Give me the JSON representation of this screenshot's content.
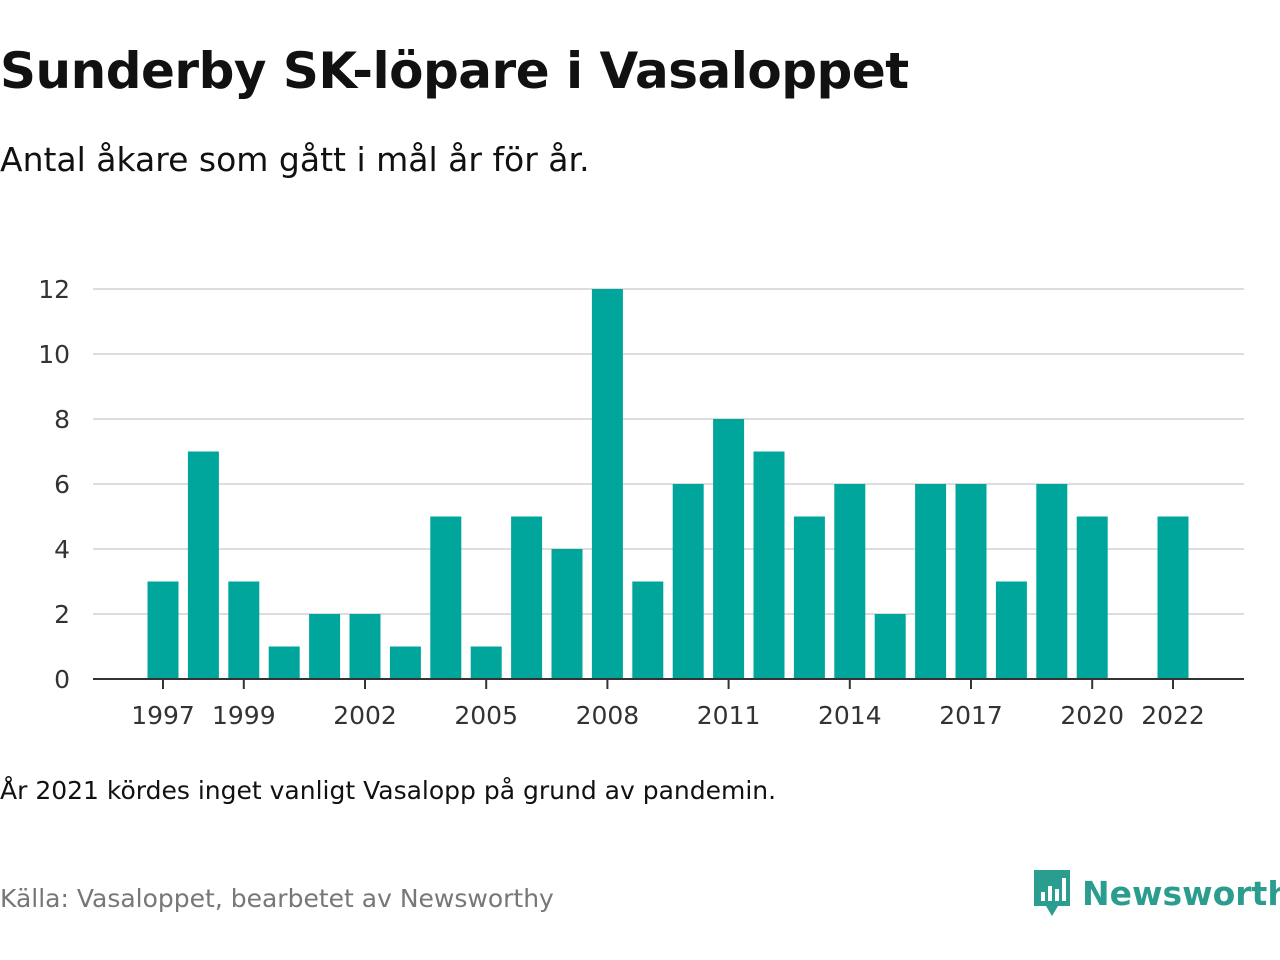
{
  "title": "Sunderby SK-löpare i Vasaloppet",
  "subtitle": "Antal åkare som gått i mål år för år.",
  "note": "År 2021 kördes inget vanligt Vasalopp på grund av pandemin.",
  "source": "Källa: Vasaloppet, bearbetet av Newsworthy",
  "brand": {
    "name": "Newsworthy",
    "icon": "newsworthy-logo-icon",
    "color": "#2a9d8f"
  },
  "colors": {
    "bar": "#00a59b",
    "grid": "#dddddd",
    "axis": "#333333"
  },
  "chart_data": {
    "type": "bar",
    "categories": [
      "1997",
      "1998",
      "1999",
      "2000",
      "2001",
      "2002",
      "2003",
      "2004",
      "2005",
      "2006",
      "2007",
      "2008",
      "2009",
      "2010",
      "2011",
      "2012",
      "2013",
      "2014",
      "2015",
      "2016",
      "2017",
      "2018",
      "2019",
      "2020",
      "2021",
      "2022"
    ],
    "values": [
      3,
      7,
      3,
      1,
      2,
      2,
      1,
      5,
      1,
      5,
      4,
      12,
      3,
      6,
      8,
      7,
      5,
      6,
      2,
      6,
      6,
      3,
      6,
      5,
      null,
      5
    ],
    "x_tick_labels": [
      "1997",
      "1999",
      "2002",
      "2005",
      "2008",
      "2011",
      "2014",
      "2017",
      "2020",
      "2022"
    ],
    "y_ticks": [
      0,
      2,
      4,
      6,
      8,
      10,
      12
    ],
    "ylim": [
      0,
      12
    ],
    "grid": true,
    "xlabel": "",
    "ylabel": ""
  }
}
